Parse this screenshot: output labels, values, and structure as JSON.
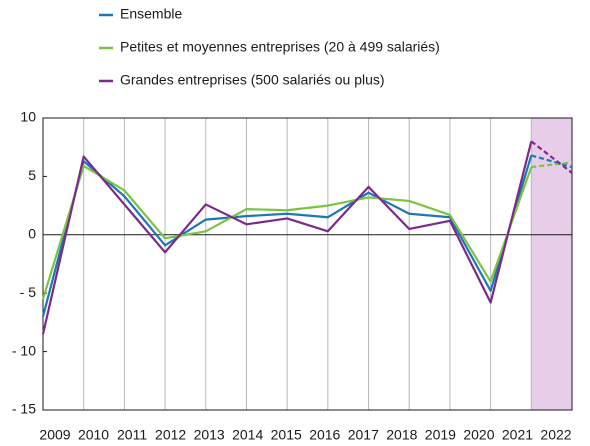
{
  "chart_data": {
    "type": "line",
    "categories": [
      "2009",
      "2010",
      "2011",
      "2012",
      "2013",
      "2014",
      "2015",
      "2016",
      "2017",
      "2018",
      "2019",
      "2020",
      "2021",
      "2022"
    ],
    "series": [
      {
        "name": "Ensemble",
        "color": "#1b78b4",
        "values": [
          -7,
          6.3,
          3.3,
          -0.9,
          1.3,
          1.6,
          1.8,
          1.5,
          3.6,
          1.8,
          1.5,
          -4.8,
          6.8,
          5.8
        ]
      },
      {
        "name": "Petites et moyennes entreprises (20 à 499 salariés)",
        "color": "#7dc242",
        "values": [
          -5.5,
          5.9,
          3.8,
          -0.3,
          0.3,
          2.2,
          2.1,
          2.5,
          3.2,
          2.9,
          1.7,
          -4,
          5.8,
          6.2
        ]
      },
      {
        "name": "Grandes entreprises (500 salariés ou plus)",
        "color": "#7b2a8c",
        "values": [
          -8.5,
          6.7,
          2.6,
          -1.5,
          2.6,
          0.9,
          1.4,
          0.3,
          4.1,
          0.5,
          1.2,
          -5.8,
          8.0,
          5.3
        ]
      }
    ],
    "ylim": [
      -15,
      10
    ],
    "yticks": [
      {
        "value": -15,
        "label": "- 15"
      },
      {
        "value": -10,
        "label": "- 10"
      },
      {
        "value": -5,
        "label": "- 5"
      },
      0,
      5,
      10
    ],
    "forecast": {
      "from": "2021",
      "to": "2022",
      "color": "#e8cde8"
    },
    "grid": true
  }
}
